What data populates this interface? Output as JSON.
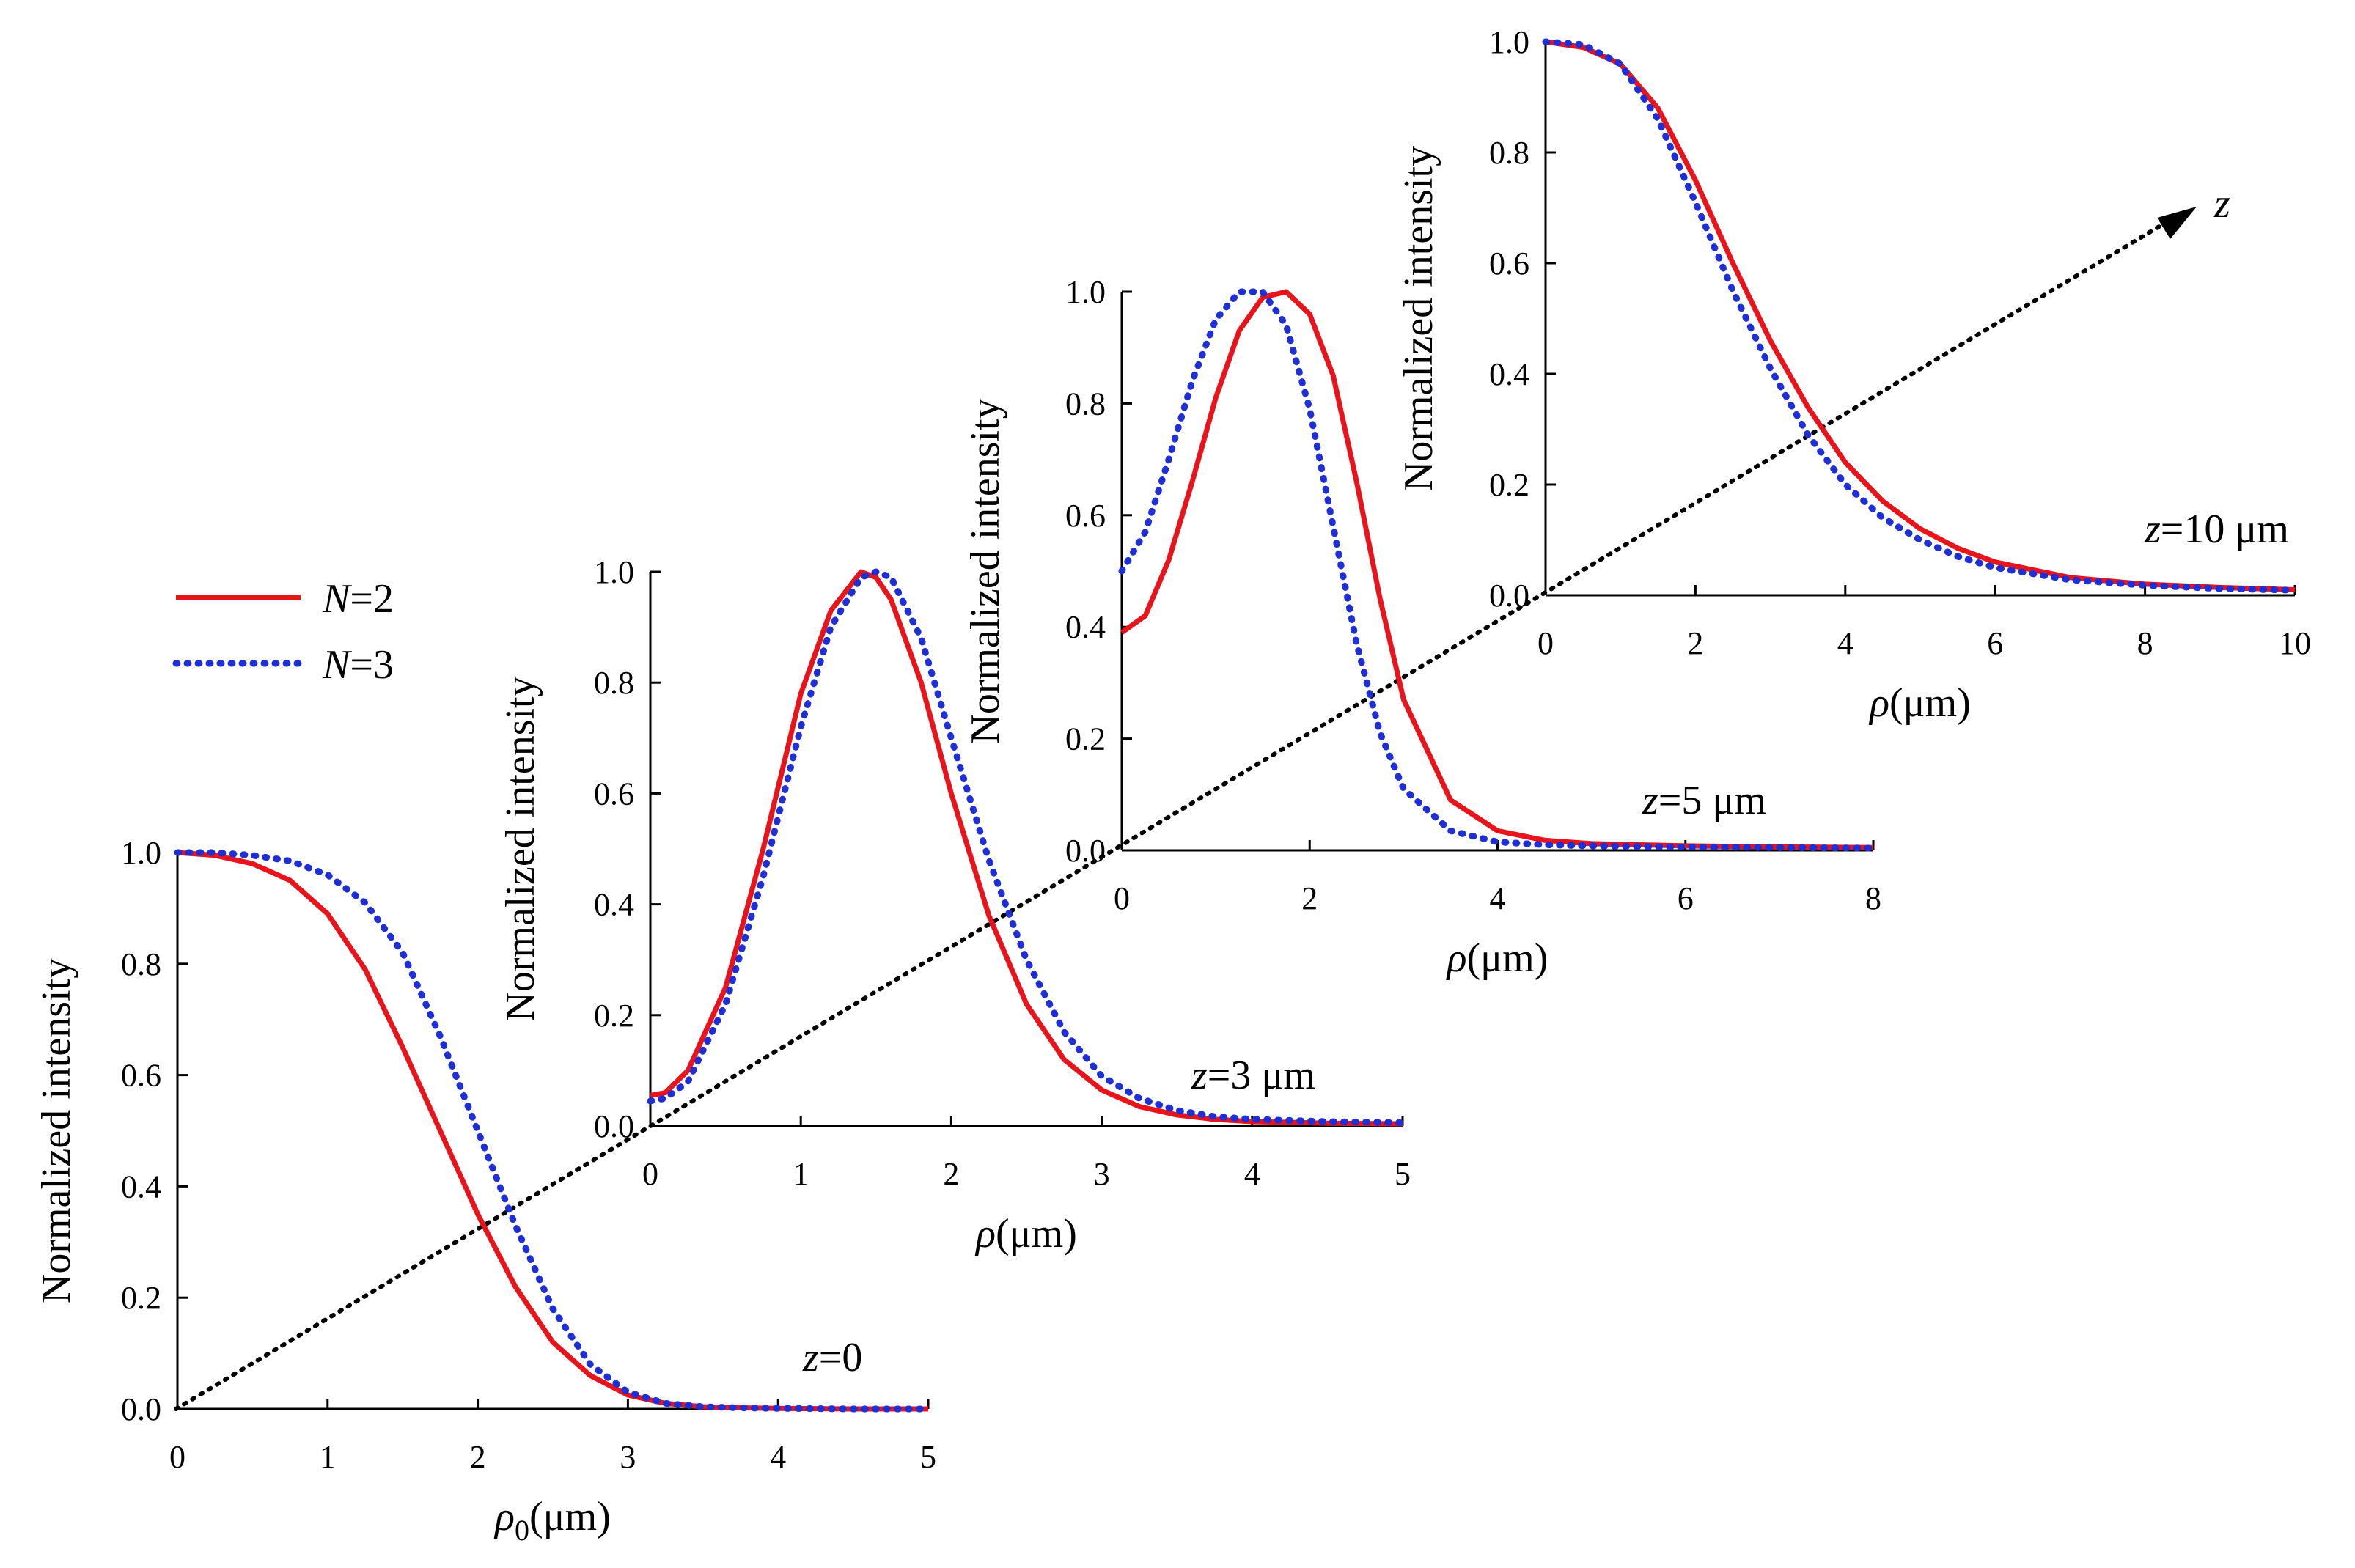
{
  "colors": {
    "n2": "#e8141c",
    "n3": "#1f2fd6",
    "axis": "#000000"
  },
  "legend": {
    "position": "left-middle",
    "items": [
      {
        "key": "n2",
        "var": "N",
        "eq": "=2",
        "style": "solid"
      },
      {
        "key": "n3",
        "var": "N",
        "eq": "=3",
        "style": "dotted"
      }
    ]
  },
  "z_axis": {
    "label": "z"
  },
  "chart_data": [
    {
      "id": "z0",
      "type": "line",
      "ylabel": "Normalized intensity",
      "xlabel": {
        "sym": "ρ",
        "sub": "0",
        "unit": "(μm)"
      },
      "annotation": {
        "var": "z",
        "rest": "=0"
      },
      "xlim": [
        0,
        5
      ],
      "ylim": [
        0,
        1
      ],
      "xticks": [
        "0",
        "1",
        "2",
        "3",
        "4",
        "5"
      ],
      "yticks": [
        "0.0",
        "0.2",
        "0.4",
        "0.6",
        "0.8",
        "1.0"
      ],
      "x": [
        0,
        0.25,
        0.5,
        0.75,
        1.0,
        1.25,
        1.5,
        1.75,
        2.0,
        2.25,
        2.5,
        2.75,
        3.0,
        3.25,
        3.5,
        3.75,
        4.0,
        4.5,
        5.0
      ],
      "series": [
        {
          "key": "n2",
          "values": [
            1.0,
            0.995,
            0.98,
            0.95,
            0.89,
            0.79,
            0.65,
            0.5,
            0.35,
            0.22,
            0.12,
            0.06,
            0.025,
            0.01,
            0.004,
            0.002,
            0.001,
            0.0,
            0.0
          ]
        },
        {
          "key": "n3",
          "values": [
            1.0,
            1.0,
            0.995,
            0.985,
            0.96,
            0.91,
            0.82,
            0.67,
            0.5,
            0.33,
            0.18,
            0.08,
            0.03,
            0.01,
            0.004,
            0.002,
            0.001,
            0.0,
            0.0
          ]
        }
      ]
    },
    {
      "id": "z3",
      "type": "line",
      "ylabel": "Normalized intensity",
      "xlabel": {
        "sym": "ρ",
        "sub": "",
        "unit": "(μm)"
      },
      "annotation": {
        "var": "z",
        "rest": "=3 μm"
      },
      "xlim": [
        0,
        5
      ],
      "ylim": [
        0,
        1
      ],
      "xticks": [
        "0",
        "1",
        "2",
        "3",
        "4",
        "5"
      ],
      "yticks": [
        "0.0",
        "0.2",
        "0.4",
        "0.6",
        "0.8",
        "1.0"
      ],
      "x": [
        0,
        0.1,
        0.25,
        0.5,
        0.75,
        1.0,
        1.2,
        1.4,
        1.5,
        1.6,
        1.8,
        2.0,
        2.25,
        2.5,
        2.75,
        3.0,
        3.25,
        3.5,
        3.75,
        4.0,
        4.5,
        5.0
      ],
      "series": [
        {
          "key": "n2",
          "values": [
            0.055,
            0.06,
            0.1,
            0.25,
            0.5,
            0.78,
            0.93,
            1.0,
            0.99,
            0.95,
            0.8,
            0.6,
            0.38,
            0.22,
            0.12,
            0.065,
            0.035,
            0.02,
            0.012,
            0.008,
            0.005,
            0.004
          ]
        },
        {
          "key": "n3",
          "values": [
            0.045,
            0.05,
            0.08,
            0.22,
            0.45,
            0.72,
            0.9,
            0.99,
            1.0,
            0.99,
            0.88,
            0.7,
            0.48,
            0.3,
            0.17,
            0.09,
            0.05,
            0.028,
            0.017,
            0.012,
            0.008,
            0.006
          ]
        }
      ]
    },
    {
      "id": "z5",
      "type": "line",
      "ylabel": "Normalized intensity",
      "xlabel": {
        "sym": "ρ",
        "sub": "",
        "unit": "(μm)"
      },
      "annotation": {
        "var": "z",
        "rest": "=5 μm"
      },
      "xlim": [
        0,
        8
      ],
      "ylim": [
        0,
        1
      ],
      "xticks": [
        "0",
        "2",
        "4",
        "6",
        "8"
      ],
      "yticks": [
        "0.0",
        "0.2",
        "0.4",
        "0.6",
        "0.8",
        "1.0"
      ],
      "x": [
        0,
        0.25,
        0.5,
        0.75,
        1.0,
        1.25,
        1.5,
        1.75,
        2.0,
        2.25,
        2.5,
        2.75,
        3.0,
        3.5,
        4.0,
        4.5,
        5.0,
        6.0,
        7.0,
        8.0
      ],
      "series": [
        {
          "key": "n2",
          "values": [
            0.39,
            0.42,
            0.52,
            0.66,
            0.81,
            0.93,
            0.99,
            1.0,
            0.96,
            0.85,
            0.66,
            0.45,
            0.27,
            0.09,
            0.035,
            0.018,
            0.012,
            0.008,
            0.006,
            0.005
          ]
        },
        {
          "key": "n3",
          "values": [
            0.5,
            0.57,
            0.7,
            0.84,
            0.95,
            1.0,
            1.0,
            0.94,
            0.79,
            0.58,
            0.37,
            0.21,
            0.11,
            0.035,
            0.015,
            0.01,
            0.008,
            0.006,
            0.005,
            0.004
          ]
        }
      ]
    },
    {
      "id": "z10",
      "type": "line",
      "ylabel": "Normalized intensity",
      "xlabel": {
        "sym": "ρ",
        "sub": "",
        "unit": "(μm)"
      },
      "annotation": {
        "var": "z",
        "rest": "=10 μm"
      },
      "xlim": [
        0,
        10
      ],
      "ylim": [
        0,
        1
      ],
      "xticks": [
        "0",
        "2",
        "4",
        "6",
        "8",
        "10"
      ],
      "yticks": [
        "0.0",
        "0.2",
        "0.4",
        "0.6",
        "0.8",
        "1.0"
      ],
      "x": [
        0,
        0.5,
        1.0,
        1.5,
        2.0,
        2.5,
        3.0,
        3.5,
        4.0,
        4.5,
        5.0,
        5.5,
        6.0,
        7.0,
        8.0,
        9.0,
        10.0
      ],
      "series": [
        {
          "key": "n2",
          "values": [
            1.0,
            0.99,
            0.96,
            0.88,
            0.75,
            0.6,
            0.46,
            0.34,
            0.24,
            0.17,
            0.12,
            0.085,
            0.06,
            0.032,
            0.02,
            0.014,
            0.01
          ]
        },
        {
          "key": "n3",
          "values": [
            1.0,
            0.995,
            0.96,
            0.86,
            0.71,
            0.55,
            0.41,
            0.29,
            0.2,
            0.14,
            0.1,
            0.07,
            0.05,
            0.028,
            0.018,
            0.012,
            0.009
          ]
        }
      ]
    }
  ]
}
